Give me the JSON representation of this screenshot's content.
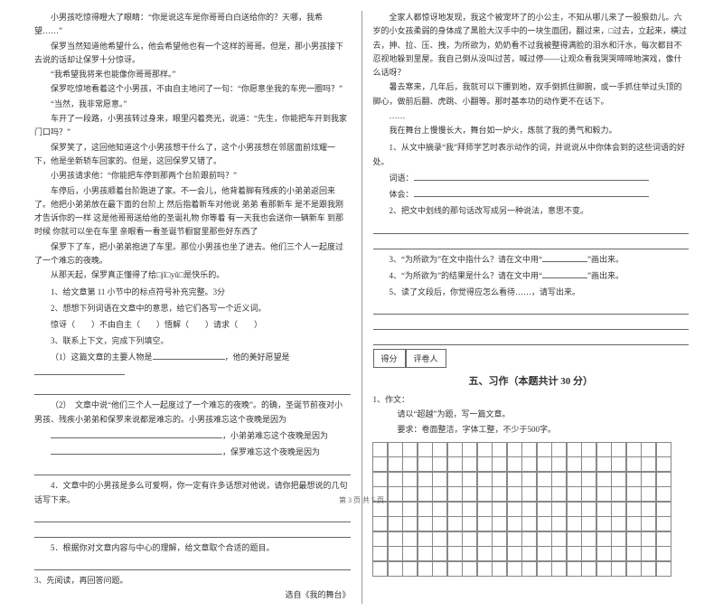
{
  "left": {
    "p1": "小男孩吃惊得瞪大了眼睛：“你是说这车是你哥哥白白送给你的？天哪，我希望……”",
    "p2": "保罗当然知道他希望什么，他会希望他也有一个这样的哥哥。但是，那小男孩接下去说的话却让保罗十分惊讶。",
    "p3": "“我希望我将来也能像你哥哥那样。”",
    "p4": "保罗吃惊地看着这个小男孩，不由自主地问了一句：“你愿意坐我的车兜一圈吗？”",
    "p5": "“当然，我非常愿意。”",
    "p6": "车开了一段路，小男孩转过身来，眼里闪着亮光，说道：“先生，你能把车开到我家门口吗？”",
    "p7": "保罗笑了，这回他知道这个小男孩想干什么了，这个小男孩想在邻居面前炫耀一下，他是坐新轿车回家的。但是，这回保罗又错了。",
    "p8": "小男孩请求他：“你能把车停到那两个台阶跟前吗？”",
    "p9": "车停后，小男孩顺着台阶跑进了家。不一会儿，他背着脚有残疾的小弟弟返回来了。他把小弟弟放在最下面的台阶上 然后指着新车对他说 弟弟 看那新车 是不是跟我刚才告诉你的一样 这是他哥哥送给他的圣诞礼物 你等着 有一天我也会送你一辆新车 到那时候 你就可以坐在车里 亲眼看一看圣诞节橱窗里那些好东西了",
    "p10": "保罗下了车，把小弟弟抱进了车里。那位小男孩也坐了进去。他们三个人一起度过了一个难忘的夜晚。",
    "p11": "从那天起，保罗真正懂得了给□jǐ□yǔ□是快乐的。",
    "q1": "1、给文章第 11 小节中的标点符号补充完整。3分",
    "q2": "2、想想下列词语在文章中的意思，给它们各写一个近义词。",
    "q2b": "惊讶（　　）不由自主（　　）悟解（　　）请求（　　）",
    "q3": "3、联系上下文，完成下列填空。",
    "q3a": "（1）这篇文章的主要人物是",
    "q3a2": "他的美好愿望是",
    "q3b": "（2）　文章中说“他们三个人一起度过了一个难忘的夜晚”。的确，圣诞节前夜对小男孩、残疾小弟弟和保罗来说都是难忘的。小男孩难忘这个夜晚是因为",
    "q3c": "，小弟弟难忘这个夜晚是因为",
    "q3d": "，保罗难忘这个夜晚是因为",
    "q4": "4．文章中的小男孩是多么可爱啊，你一定有许多话想对他说，请你把最想说的几句话写下来。",
    "q5": "5．根据你对文章内容与中心的理解，给文章取个合适的题目。",
    "read_intro": "3、先阅读，再回答问题。",
    "source": "选自《我的舞台》"
  },
  "right": {
    "p1": "全家人都惊讶地发现，我这个被宠坏了的小公主，不知从哪儿来了一股狠劲儿。六岁的小女孩柔弱的身体成了黑脸大汉手中的一块生面团，翻过来，□过去，立起来，横过去，抻、拉、压、拽，为所欲为，奶奶看不过我被整得满脸的泪水和汗水，每次都目不忍视地躲到里屋。我自己倒从没叫过苦，喊过停——让观众看我哭哭啼啼地演戏，像什么话呀？",
    "p2": "暑去寒来，几年后，我就可以下腰到地，双手倒抓住脚腕，或一手抓住举过头顶的脚心，做前后翻、虎跳、小翻等。那时基本功的动作更不在话下。",
    "p3": "……",
    "p4": "我在舞台上慢慢长大，舞台如一炉火，炼就了我的勇气和毅力。",
    "q1": "1、从文中摘录“我”拜师学艺时表示动作的词，并说说从中你体会到的这些词语的好处。",
    "q1b": "词语：",
    "q1c": "体会：",
    "q2": "2、把文中划线的那句话改写成另一种说法，意思不变。",
    "q3": "3、“为所欲为”在文中指什么？请在文中用“",
    "q3b": "”画出来。",
    "q4": "4、“为所欲为”的结果是什么？请在文中用“",
    "q4b": "”画出来。",
    "q5": "5、读了文段后，你觉得应怎么看待……，请写出来。",
    "score_label1": "得分",
    "score_label2": "评卷人",
    "section_title": "五、习作（本题共计 30 分）",
    "compo_label": "1、作文：",
    "compo_1": "请以“超越”为题，写一篇文章。",
    "compo_2": "要求：卷面整洁，字体工整，不少于500字。"
  },
  "footer": "第 3 页 共 5 页",
  "grid": {
    "rows": 9,
    "cols": 20
  }
}
